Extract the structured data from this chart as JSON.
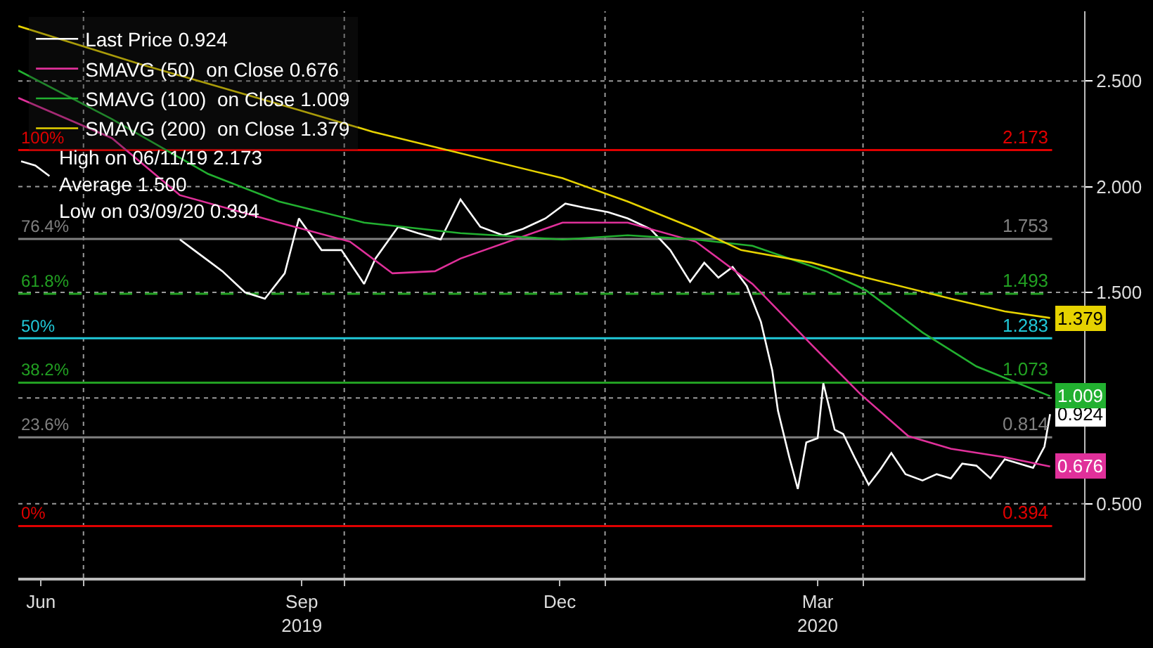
{
  "chart_data": {
    "type": "line",
    "xlim": [
      "2019-06-08",
      "2020-06-18"
    ],
    "xticks": [
      {
        "value": "2019-06-16",
        "label": "Jun"
      },
      {
        "value": "2019-07-01",
        "label": null
      },
      {
        "value": "2019-09-16",
        "label": "Sep\n2019"
      },
      {
        "value": "2019-10-01",
        "label": null
      },
      {
        "value": "2019-12-16",
        "label": "Dec"
      },
      {
        "value": "2020-01-01",
        "label": null
      },
      {
        "value": "2020-03-16",
        "label": "Mar\n2020"
      },
      {
        "value": "2020-04-01",
        "label": null
      }
    ],
    "ylim": [
      0.15,
      2.83
    ],
    "yticks": [
      {
        "value": 0.5,
        "label": "0.500"
      },
      {
        "value": 1.0,
        "label": null
      },
      {
        "value": 1.5,
        "label": "1.500"
      },
      {
        "value": 2.0,
        "label": "2.000"
      },
      {
        "value": 2.5,
        "label": "2.500"
      }
    ],
    "grid": true,
    "legend": "top left",
    "line_style": "solid",
    "marker": "none",
    "series": [
      {
        "name": "Last Price 0.924",
        "color": "#ffffff",
        "x": [
          "2019-06-09",
          "2019-06-14",
          "2019-06-19",
          "2019-07-20",
          "2019-08-04",
          "2019-08-09",
          "2019-08-14",
          "2019-08-19",
          "2019-08-27",
          "2019-09-03",
          "2019-09-10",
          "2019-09-15",
          "2019-09-23",
          "2019-09-30",
          "2019-10-08",
          "2019-10-12",
          "2019-10-20",
          "2019-10-27",
          "2019-11-04",
          "2019-11-11",
          "2019-11-18",
          "2019-11-26",
          "2019-12-03",
          "2019-12-11",
          "2019-12-18",
          "2019-12-25",
          "2020-01-02",
          "2020-01-09",
          "2020-01-17",
          "2020-01-24",
          "2020-01-31",
          "2020-02-05",
          "2020-02-10",
          "2020-02-15",
          "2020-02-20",
          "2020-02-25",
          "2020-02-29",
          "2020-03-02",
          "2020-03-06",
          "2020-03-09",
          "2020-03-12",
          "2020-03-16",
          "2020-03-18",
          "2020-03-22",
          "2020-03-25",
          "2020-03-29",
          "2020-04-03",
          "2020-04-07",
          "2020-04-11",
          "2020-04-16",
          "2020-04-22",
          "2020-04-27",
          "2020-05-02",
          "2020-05-06",
          "2020-05-11",
          "2020-05-16",
          "2020-05-21",
          "2020-05-26",
          "2020-05-31",
          "2020-06-04",
          "2020-06-06"
        ],
        "values": [
          2.12,
          2.1,
          2.05,
          null,
          1.75,
          1.7,
          1.65,
          1.6,
          1.5,
          1.47,
          1.59,
          1.85,
          1.7,
          1.7,
          1.54,
          1.66,
          1.81,
          1.78,
          1.75,
          1.94,
          1.81,
          1.77,
          1.8,
          1.85,
          1.92,
          1.9,
          1.88,
          1.85,
          1.8,
          1.7,
          1.55,
          1.64,
          1.57,
          1.62,
          1.53,
          1.36,
          1.13,
          0.94,
          0.72,
          0.57,
          0.79,
          0.81,
          1.07,
          0.85,
          0.83,
          0.72,
          0.59,
          0.66,
          0.74,
          0.64,
          0.61,
          0.64,
          0.62,
          0.69,
          0.68,
          0.62,
          0.71,
          0.69,
          0.67,
          0.77,
          0.924
        ],
        "value_labels": [
          null,
          null,
          null,
          null,
          null,
          null,
          null,
          null,
          null,
          null,
          null,
          null,
          null,
          null,
          null,
          null,
          null,
          null,
          null,
          null,
          null,
          null,
          null,
          null,
          null,
          null,
          null,
          null,
          null,
          null,
          null,
          null,
          null,
          null,
          null,
          null,
          null,
          null,
          null,
          null,
          null,
          null,
          null,
          null,
          null,
          null,
          null,
          null,
          null,
          null,
          null,
          null,
          null,
          null,
          null,
          null,
          null,
          null,
          null,
          null,
          "0.924"
        ]
      },
      {
        "name": "SMAVG (50)  on Close 0.676",
        "color": "#e0309a",
        "x": [
          "2019-06-08",
          "2019-07-11",
          "2019-08-04",
          "2019-09-08",
          "2019-10-03",
          "2019-10-18",
          "2019-11-02",
          "2019-11-11",
          "2019-12-17",
          "2020-01-09",
          "2020-02-02",
          "2020-02-22",
          "2020-03-14",
          "2020-03-31",
          "2020-04-17",
          "2020-05-02",
          "2020-05-21",
          "2020-06-06"
        ],
        "values": [
          2.42,
          2.23,
          1.96,
          1.83,
          1.74,
          1.59,
          1.6,
          1.66,
          1.83,
          1.83,
          1.74,
          1.54,
          1.25,
          1.02,
          0.82,
          0.76,
          0.72,
          0.676
        ],
        "value_labels": [
          null,
          null,
          null,
          null,
          null,
          null,
          null,
          null,
          null,
          null,
          null,
          null,
          null,
          null,
          null,
          null,
          null,
          "0.676"
        ]
      },
      {
        "name": "SMAVG (100)  on Close 1.009",
        "color": "#22b030",
        "x": [
          "2019-06-08",
          "2019-07-11",
          "2019-08-14",
          "2019-09-08",
          "2019-10-08",
          "2019-11-11",
          "2019-12-17",
          "2020-01-09",
          "2020-02-02",
          "2020-02-22",
          "2020-03-19",
          "2020-04-02",
          "2020-04-22",
          "2020-05-11",
          "2020-06-06"
        ],
        "values": [
          2.55,
          2.32,
          2.06,
          1.93,
          1.83,
          1.78,
          1.75,
          1.77,
          1.75,
          1.72,
          1.6,
          1.51,
          1.31,
          1.15,
          1.009
        ],
        "value_labels": [
          null,
          null,
          null,
          null,
          null,
          null,
          null,
          null,
          null,
          null,
          null,
          null,
          null,
          null,
          "1.009"
        ]
      },
      {
        "name": "SMAVG (200)  on Close 1.379",
        "color": "#e6d200",
        "x": [
          "2019-06-08",
          "2019-07-21",
          "2019-09-08",
          "2019-10-11",
          "2019-12-17",
          "2020-01-09",
          "2020-02-02",
          "2020-02-18",
          "2020-03-14",
          "2020-04-02",
          "2020-05-02",
          "2020-05-21",
          "2020-06-06"
        ],
        "values": [
          2.76,
          2.58,
          2.39,
          2.26,
          2.04,
          1.93,
          1.8,
          1.7,
          1.64,
          1.57,
          1.47,
          1.41,
          1.379
        ],
        "value_labels": [
          null,
          null,
          null,
          null,
          null,
          null,
          null,
          null,
          null,
          null,
          null,
          null,
          "1.379"
        ]
      }
    ],
    "ref_lines": [
      {
        "axis": "y",
        "value": 2.173,
        "label": "2.173",
        "color": "#e00000"
      },
      {
        "axis": "y",
        "value": 1.753,
        "label": "1.753",
        "color": "#808080"
      },
      {
        "axis": "y",
        "value": 1.493,
        "label": "1.493",
        "color": "#22a022",
        "line_style": "dashed"
      },
      {
        "axis": "y",
        "value": 1.283,
        "label": "1.283",
        "color": "#20c8d8"
      },
      {
        "axis": "y",
        "value": 1.073,
        "label": "1.073",
        "color": "#22a022"
      },
      {
        "axis": "y",
        "value": 0.814,
        "label": "0.814",
        "color": "#808080"
      },
      {
        "axis": "y",
        "value": 0.394,
        "label": "0.394",
        "color": "#e00000"
      }
    ],
    "annotations": [
      "High on 06/11/19 2.173",
      "Average 1.500",
      "Low on 03/09/20 0.394",
      {
        "text": "100%",
        "x": "2019-06-08",
        "y": 2.173
      },
      {
        "text": "76.4%",
        "x": "2019-06-08",
        "y": 1.753
      },
      {
        "text": "61.8%",
        "x": "2019-06-08",
        "y": 1.493
      },
      {
        "text": "50%",
        "x": "2019-06-08",
        "y": 1.283
      },
      {
        "text": "38.2%",
        "x": "2019-06-08",
        "y": 1.073
      },
      {
        "text": "23.6%",
        "x": "2019-06-08",
        "y": 0.814
      },
      {
        "text": "0%",
        "x": "2019-06-08",
        "y": 0.394
      }
    ]
  }
}
